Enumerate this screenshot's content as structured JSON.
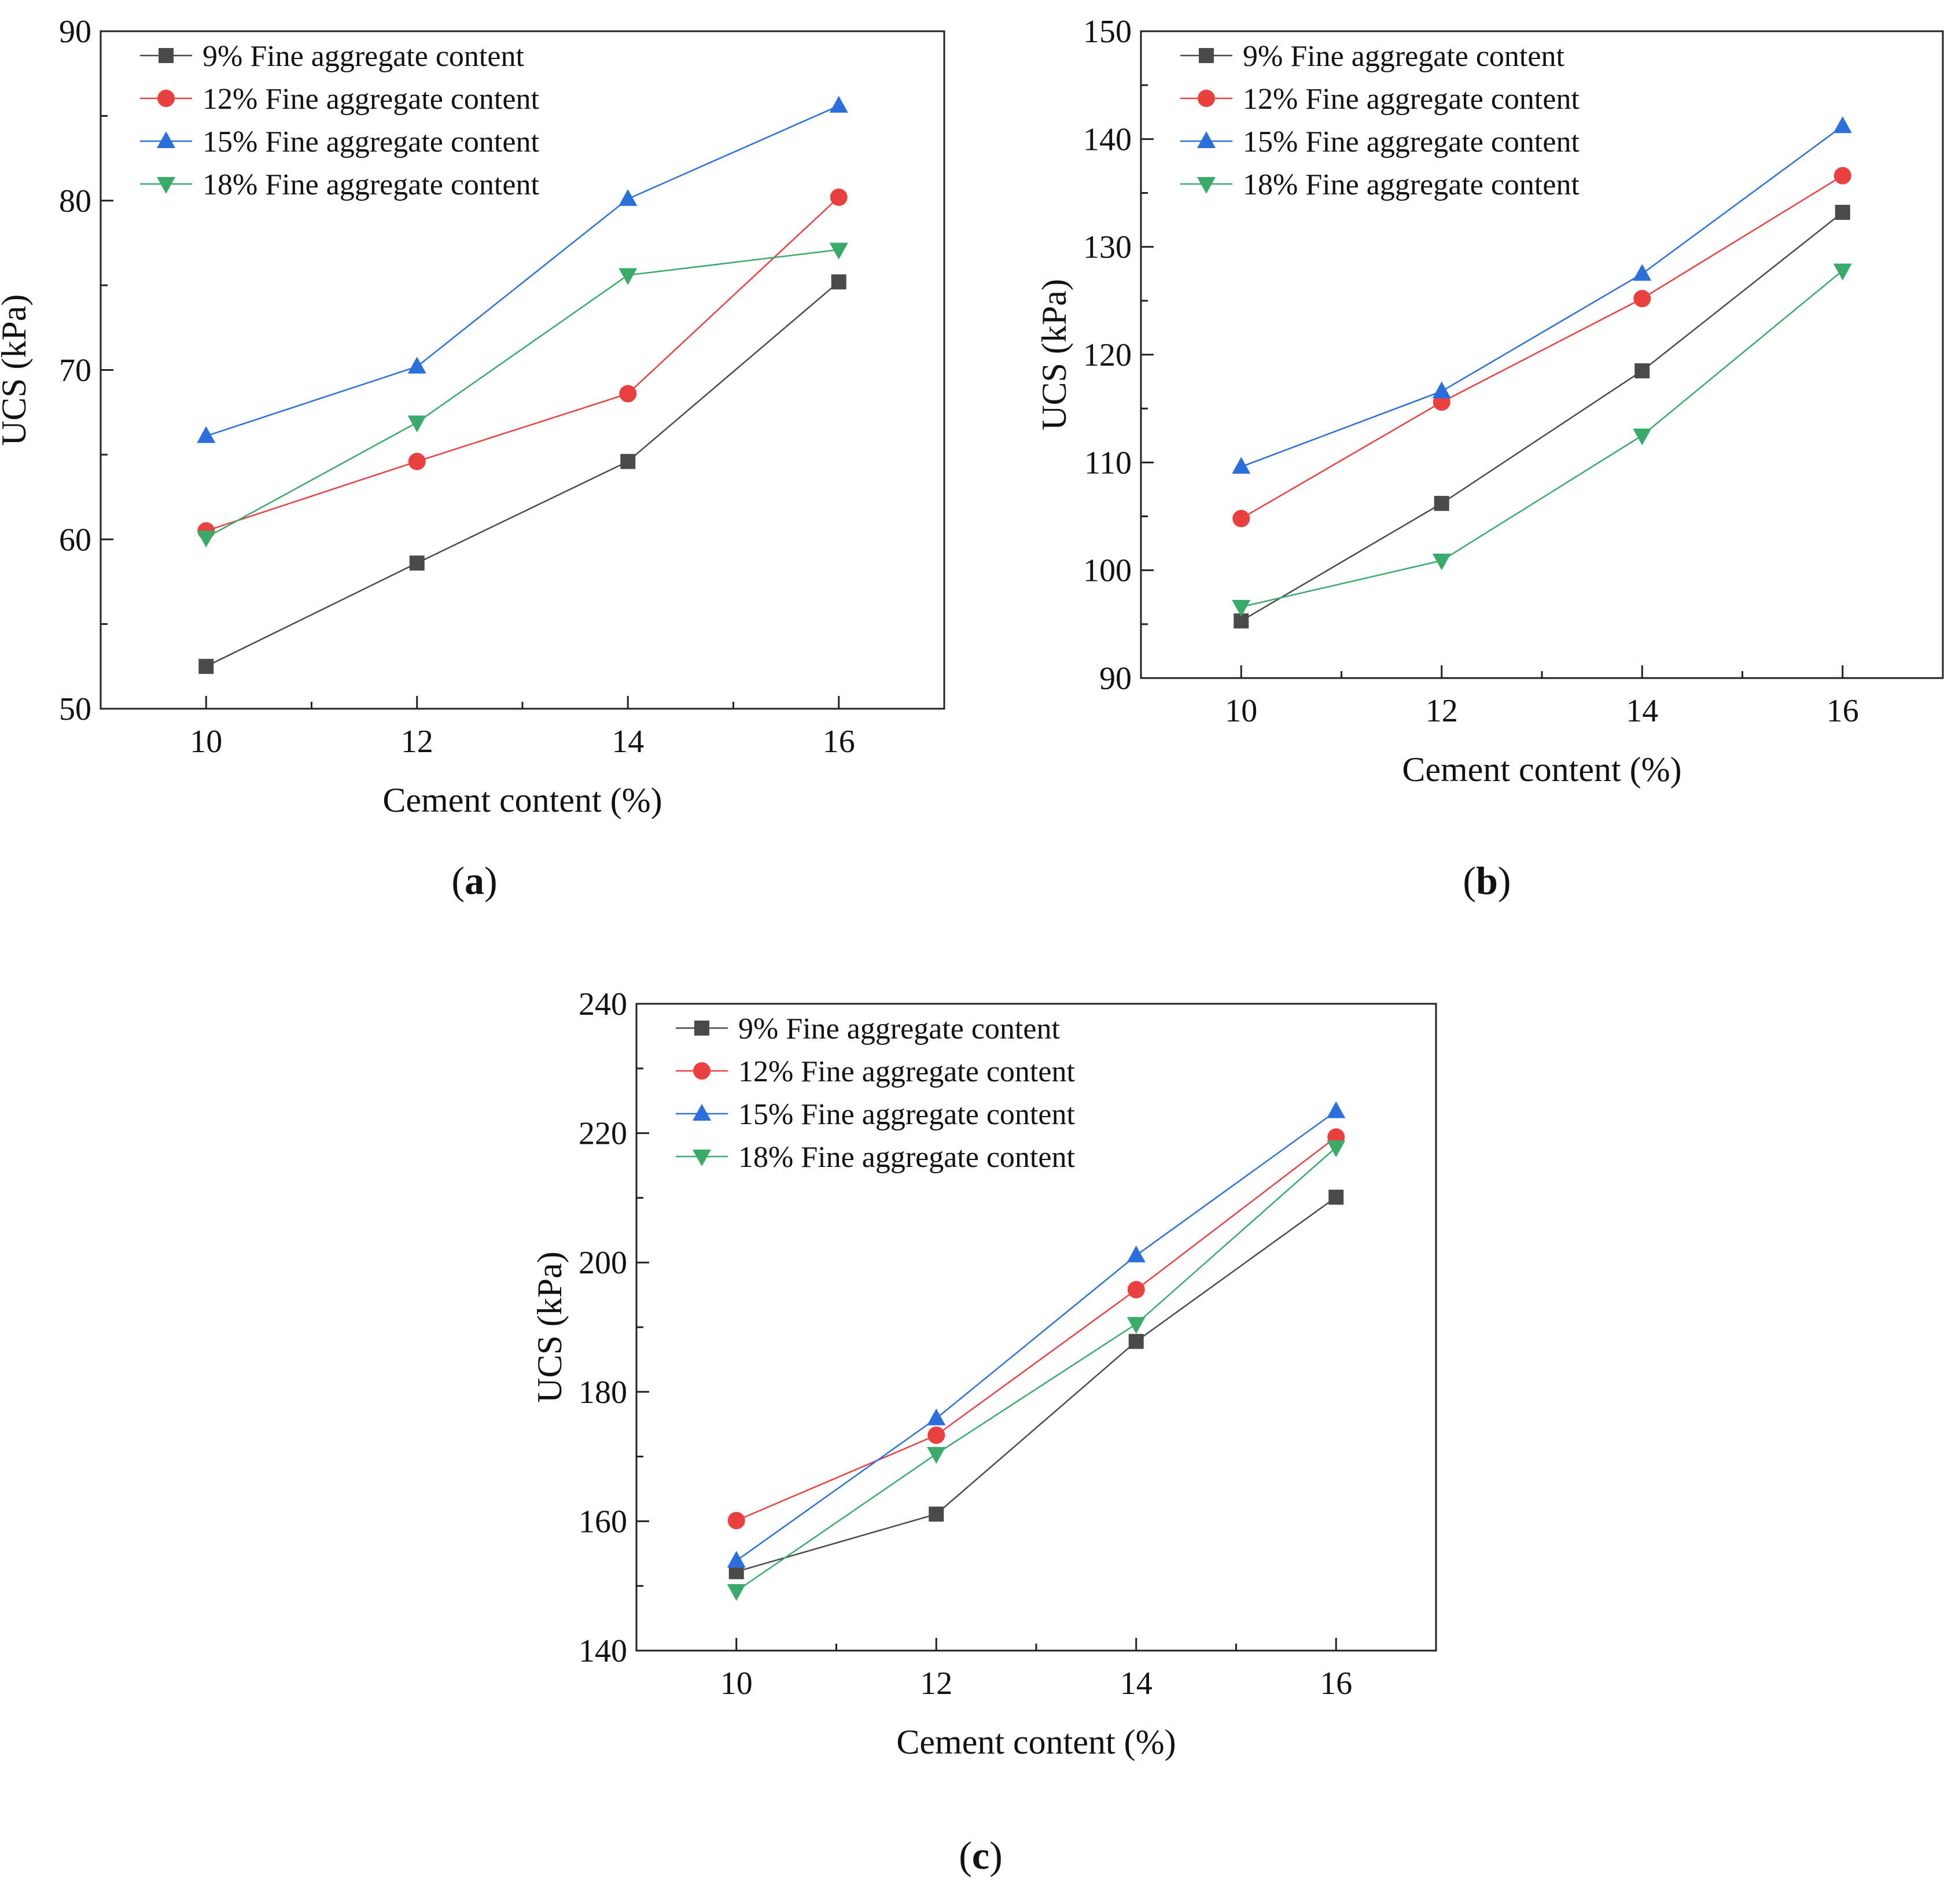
{
  "figure": {
    "panels": [
      "a",
      "b",
      "c"
    ]
  },
  "chart_data": [
    {
      "panel": "a",
      "caption": "a",
      "type": "line",
      "xlabel": "Cement content (%)",
      "ylabel": "UCS (kPa)",
      "x": [
        10,
        12,
        14,
        16
      ],
      "xlim": [
        9,
        17
      ],
      "ylim": [
        50,
        90
      ],
      "xticks": [
        10,
        12,
        14,
        16
      ],
      "yticks": [
        50,
        60,
        70,
        80,
        90
      ],
      "grid": false,
      "legend_position": "top-left",
      "series": [
        {
          "name": "9%  Fine aggregate content",
          "marker": "square",
          "color": "#4a4a4a",
          "values": [
            52.5,
            58.6,
            64.6,
            75.2
          ]
        },
        {
          "name": "12% Fine aggregate content",
          "marker": "circle",
          "color": "#e8413f",
          "values": [
            60.5,
            64.6,
            68.6,
            80.2
          ]
        },
        {
          "name": "15% Fine aggregate content",
          "marker": "triangle-up",
          "color": "#2a6fdb",
          "values": [
            66.1,
            70.2,
            80.1,
            85.6
          ]
        },
        {
          "name": "18% Fine aggregate content",
          "marker": "triangle-down",
          "color": "#3aaa6a",
          "values": [
            60.1,
            66.9,
            75.6,
            77.1
          ]
        }
      ]
    },
    {
      "panel": "b",
      "caption": "b",
      "type": "line",
      "xlabel": "Cement content (%)",
      "ylabel": "UCS (kPa)",
      "x": [
        10,
        12,
        14,
        16
      ],
      "xlim": [
        9,
        17
      ],
      "ylim": [
        90,
        150
      ],
      "xticks": [
        10,
        12,
        14,
        16
      ],
      "yticks": [
        90,
        100,
        110,
        120,
        130,
        140,
        150
      ],
      "grid": false,
      "legend_position": "top-left",
      "series": [
        {
          "name": "9%  Fine aggregate content",
          "marker": "square",
          "color": "#4a4a4a",
          "values": [
            95.3,
            106.2,
            118.5,
            133.2
          ]
        },
        {
          "name": "12% Fine aggregate content",
          "marker": "circle",
          "color": "#e8413f",
          "values": [
            104.8,
            115.6,
            125.2,
            136.6
          ]
        },
        {
          "name": "15% Fine aggregate content",
          "marker": "triangle-up",
          "color": "#2a6fdb",
          "values": [
            109.6,
            116.6,
            127.5,
            141.2
          ]
        },
        {
          "name": "18% Fine aggregate content",
          "marker": "triangle-down",
          "color": "#3aaa6a",
          "values": [
            96.6,
            100.9,
            112.5,
            127.8
          ]
        }
      ]
    },
    {
      "panel": "c",
      "caption": "c",
      "type": "line",
      "xlabel": "Cement content (%)",
      "ylabel": "UCS (kPa)",
      "x": [
        10,
        12,
        14,
        16
      ],
      "xlim": [
        9,
        17
      ],
      "ylim": [
        140,
        240
      ],
      "xticks": [
        10,
        12,
        14,
        16
      ],
      "yticks": [
        140,
        160,
        180,
        200,
        220,
        240
      ],
      "grid": false,
      "legend_position": "top-left",
      "series": [
        {
          "name": "9%  Fine aggregate content",
          "marker": "square",
          "color": "#4a4a4a",
          "values": [
            152.2,
            161.1,
            187.8,
            210.1
          ]
        },
        {
          "name": "12% Fine aggregate content",
          "marker": "circle",
          "color": "#e8413f",
          "values": [
            160.1,
            173.3,
            195.8,
            219.4
          ]
        },
        {
          "name": "15% Fine aggregate content",
          "marker": "triangle-up",
          "color": "#2a6fdb",
          "values": [
            153.9,
            175.9,
            201.1,
            223.4
          ]
        },
        {
          "name": "18% Fine aggregate content",
          "marker": "triangle-down",
          "color": "#3aaa6a",
          "values": [
            149.2,
            170.4,
            190.5,
            217.8
          ]
        }
      ]
    }
  ]
}
